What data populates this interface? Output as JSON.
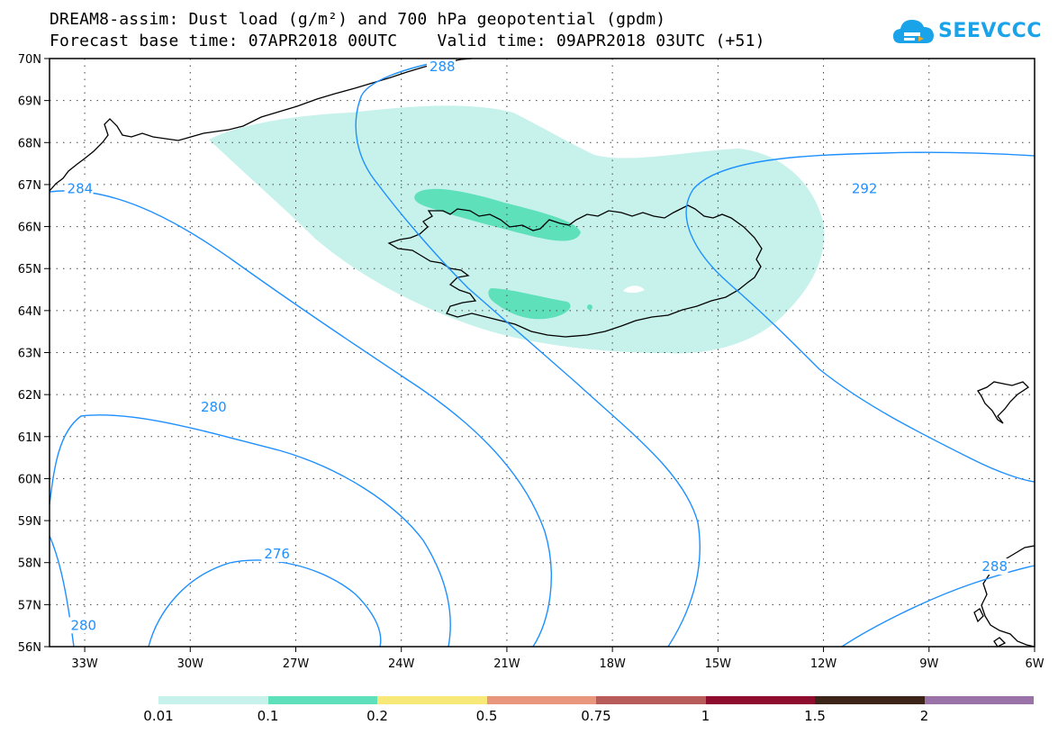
{
  "title_line1": "DREAM8-assim: Dust load (g/m²) and 700 hPa geopotential (gpdm)",
  "title_line2": "Forecast base time: 07APR2018 00UTC    Valid time: 09APR2018 03UTC (+51)",
  "logo": {
    "text": "SEEVCCC",
    "icon": "cloud-logo-icon",
    "color": "#1aa3e8"
  },
  "map": {
    "lon_range": [
      -34,
      -6
    ],
    "lat_range": [
      56,
      70
    ],
    "lon_ticks": [
      {
        "value": -33,
        "label": "33W"
      },
      {
        "value": -30,
        "label": "30W"
      },
      {
        "value": -27,
        "label": "27W"
      },
      {
        "value": -24,
        "label": "24W"
      },
      {
        "value": -21,
        "label": "21W"
      },
      {
        "value": -18,
        "label": "18W"
      },
      {
        "value": -15,
        "label": "15W"
      },
      {
        "value": -12,
        "label": "12W"
      },
      {
        "value": -9,
        "label": "9W"
      },
      {
        "value": -6,
        "label": "6W"
      }
    ],
    "lat_ticks": [
      {
        "value": 70,
        "label": "70N"
      },
      {
        "value": 69,
        "label": "69N"
      },
      {
        "value": 68,
        "label": "68N"
      },
      {
        "value": 67,
        "label": "67N"
      },
      {
        "value": 66,
        "label": "66N"
      },
      {
        "value": 65,
        "label": "65N"
      },
      {
        "value": 64,
        "label": "64N"
      },
      {
        "value": 63,
        "label": "63N"
      },
      {
        "value": 62,
        "label": "62N"
      },
      {
        "value": 61,
        "label": "61N"
      },
      {
        "value": 60,
        "label": "60N"
      },
      {
        "value": 59,
        "label": "59N"
      },
      {
        "value": 58,
        "label": "58N"
      },
      {
        "value": 57,
        "label": "57N"
      },
      {
        "value": 56,
        "label": "56N"
      }
    ],
    "contour_color": "#1e90ff",
    "contour_labels": [
      {
        "text": "288",
        "lon": -23.2,
        "lat": 69.8
      },
      {
        "text": "292",
        "lon": -11.2,
        "lat": 66.8
      },
      {
        "text": "284",
        "lon": -33.5,
        "lat": 66.8
      },
      {
        "text": "280",
        "lon": -29.7,
        "lat": 61.6
      },
      {
        "text": "276",
        "lon": -27.9,
        "lat": 58.1
      },
      {
        "text": "280",
        "lon": -33.4,
        "lat": 56.4
      },
      {
        "text": "288",
        "lon": -7.5,
        "lat": 57.8
      }
    ],
    "dust_colors": {
      "light": "#c6f2eb",
      "medium": "#5ee0bb"
    },
    "grid": true
  },
  "colorbar": {
    "segments": [
      "#c6f2eb",
      "#5ee0bb",
      "#f8e878",
      "#e8967c",
      "#b85c5a",
      "#8e0c2e",
      "#3c2418",
      "#9a72a8"
    ],
    "labels": [
      "0.01",
      "0.1",
      "0.2",
      "0.5",
      "0.75",
      "1",
      "1.5",
      "2"
    ]
  }
}
